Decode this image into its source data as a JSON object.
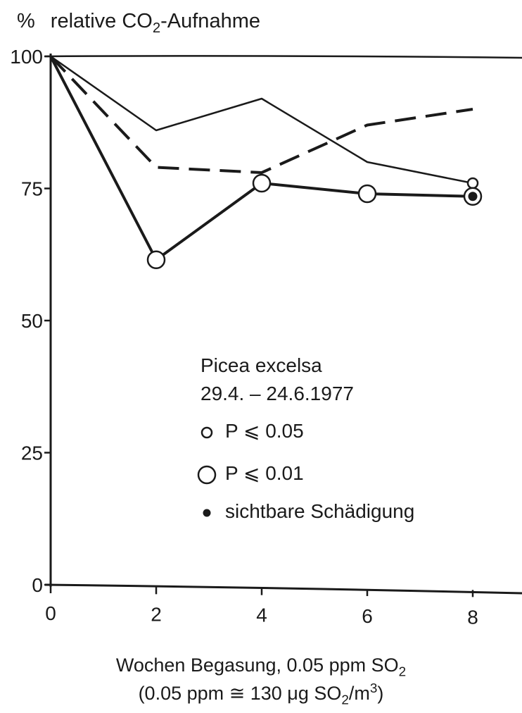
{
  "chart_data": {
    "type": "line",
    "ylabel": {
      "prefix": "%",
      "text": "relative CO",
      "sub": "2",
      "suffix": "-Aufnahme"
    },
    "xlabel_line1": {
      "text": "Wochen Begasung, 0.05 ppm SO",
      "sub": "2"
    },
    "xlabel_line2": {
      "pre": "(0.05 ppm ≅ 130 μg SO",
      "sub": "2",
      "mid": "/m",
      "sup": "3",
      "post": ")"
    },
    "x_ticks": [
      "0",
      "2",
      "4",
      "6",
      "8"
    ],
    "y_ticks": [
      "0",
      "25",
      "50",
      "75",
      "100"
    ],
    "xlim": [
      0,
      8
    ],
    "ylim": [
      0,
      100
    ],
    "series": [
      {
        "style": "thin-solid",
        "points": [
          {
            "x": 0,
            "y": 100
          },
          {
            "x": 2,
            "y": 86
          },
          {
            "x": 4,
            "y": 92
          },
          {
            "x": 6,
            "y": 80
          },
          {
            "x": 8,
            "y": 76
          }
        ],
        "markers": [
          {
            "x": 8,
            "y": 76,
            "kind": "small-open"
          }
        ]
      },
      {
        "style": "dashed",
        "points": [
          {
            "x": 0,
            "y": 100
          },
          {
            "x": 2,
            "y": 79
          },
          {
            "x": 4,
            "y": 78
          },
          {
            "x": 6,
            "y": 87
          },
          {
            "x": 8,
            "y": 90
          }
        ],
        "markers": []
      },
      {
        "style": "thick-solid",
        "points": [
          {
            "x": 0,
            "y": 100
          },
          {
            "x": 2,
            "y": 61.5
          },
          {
            "x": 4,
            "y": 76
          },
          {
            "x": 6,
            "y": 74
          },
          {
            "x": 8,
            "y": 73.5
          }
        ],
        "markers": [
          {
            "x": 2,
            "y": 61.5,
            "kind": "large-open"
          },
          {
            "x": 4,
            "y": 76,
            "kind": "large-open"
          },
          {
            "x": 6,
            "y": 74,
            "kind": "large-open"
          },
          {
            "x": 8,
            "y": 73.5,
            "kind": "large-open-filled"
          }
        ]
      }
    ],
    "legend": {
      "title": "Picea excelsa",
      "date": "29.4. – 24.6.1977",
      "items": [
        {
          "marker": "small-open",
          "label": "P ⩽ 0.05"
        },
        {
          "marker": "large-open",
          "label": "P ⩽ 0.01"
        },
        {
          "marker": "filled",
          "label": "sichtbare Schädigung"
        }
      ]
    },
    "grid": false,
    "colors": {
      "ink": "#1a1a1a",
      "background": "#ffffff"
    }
  }
}
